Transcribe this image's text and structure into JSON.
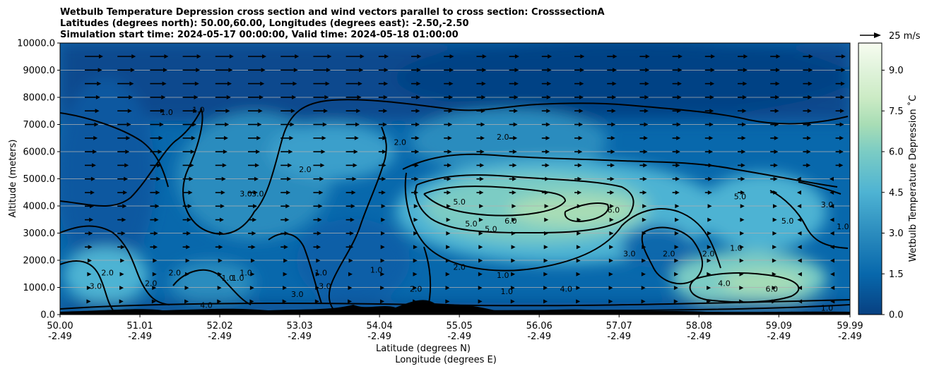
{
  "chart_data": {
    "type": "heatmap",
    "title_lines": [
      "Wetbulb Temperature Depression cross section and wind vectors parallel to cross section: CrosssectionA",
      "Latitudes (degrees north): 50.00,60.00, Longitudes (degrees east): -2.50,-2.50",
      "Simulation start time: 2024-05-17 00:00:00, Valid time: 2024-05-18 01:00:00"
    ],
    "ylabel": "Altitude (meters)",
    "xlabel_lines": [
      "Latitude (degrees N)",
      "Longitude (degrees E)"
    ],
    "colorbar_label": "Wetbulb Temperature Depression ˚C",
    "colormap": "GnBu",
    "x_ticks": [
      {
        "lat": "50.00",
        "lon": "-2.49"
      },
      {
        "lat": "51.01",
        "lon": "-2.49"
      },
      {
        "lat": "52.02",
        "lon": "-2.49"
      },
      {
        "lat": "53.03",
        "lon": "-2.49"
      },
      {
        "lat": "54.04",
        "lon": "-2.49"
      },
      {
        "lat": "55.05",
        "lon": "-2.49"
      },
      {
        "lat": "56.06",
        "lon": "-2.49"
      },
      {
        "lat": "57.07",
        "lon": "-2.49"
      },
      {
        "lat": "58.08",
        "lon": "-2.49"
      },
      {
        "lat": "59.09",
        "lon": "-2.49"
      },
      {
        "lat": "59.99",
        "lon": "-2.49"
      }
    ],
    "xlim": [
      50.0,
      59.99
    ],
    "y_ticks": [
      "0.0",
      "1000.0",
      "2000.0",
      "3000.0",
      "4000.0",
      "5000.0",
      "6000.0",
      "7000.0",
      "8000.0",
      "9000.0",
      "10000.0"
    ],
    "ylim": [
      0,
      10000
    ],
    "grid": "horizontal",
    "colorbar_ticks": [
      "0.0",
      "1.5",
      "3.0",
      "4.5",
      "6.0",
      "7.5",
      "9.0"
    ],
    "colorbar_range": [
      0,
      10
    ],
    "quiver_key": "25 m/s",
    "contour_levels": [
      1.0,
      2.0,
      3.0,
      4.0,
      5.0,
      6.0
    ],
    "contour_labels": [
      {
        "text": "1.0",
        "lat": 51.35,
        "alt": 7400
      },
      {
        "text": "1.0",
        "lat": 51.75,
        "alt": 7500
      },
      {
        "text": "2.0",
        "lat": 54.3,
        "alt": 6300
      },
      {
        "text": "2.0",
        "lat": 55.6,
        "alt": 6500
      },
      {
        "text": "2.0",
        "lat": 53.1,
        "alt": 5300
      },
      {
        "text": "3.0",
        "lat": 52.35,
        "alt": 4400
      },
      {
        "text": "3.0",
        "lat": 52.5,
        "alt": 4400
      },
      {
        "text": "5.0",
        "lat": 55.05,
        "alt": 4100
      },
      {
        "text": "5.0",
        "lat": 55.2,
        "alt": 3300
      },
      {
        "text": "5.0",
        "lat": 55.45,
        "alt": 3100
      },
      {
        "text": "6.0",
        "lat": 55.7,
        "alt": 3400
      },
      {
        "text": "6.0",
        "lat": 57.0,
        "alt": 3800
      },
      {
        "text": "5.0",
        "lat": 58.6,
        "alt": 4300
      },
      {
        "text": "5.0",
        "lat": 59.2,
        "alt": 3400
      },
      {
        "text": "3.0",
        "lat": 59.7,
        "alt": 4000
      },
      {
        "text": "3.0",
        "lat": 57.2,
        "alt": 2200
      },
      {
        "text": "2.0",
        "lat": 57.7,
        "alt": 2200
      },
      {
        "text": "2.0",
        "lat": 58.2,
        "alt": 2200
      },
      {
        "text": "1.0",
        "lat": 58.55,
        "alt": 2400
      },
      {
        "text": "4.0",
        "lat": 58.4,
        "alt": 1100
      },
      {
        "text": "6.0",
        "lat": 59.0,
        "alt": 900
      },
      {
        "text": "4.0",
        "lat": 56.4,
        "alt": 900
      },
      {
        "text": "2.0",
        "lat": 55.05,
        "alt": 1700
      },
      {
        "text": "1.0",
        "lat": 55.6,
        "alt": 1400
      },
      {
        "text": "1.0",
        "lat": 54.0,
        "alt": 1600
      },
      {
        "text": "1.0",
        "lat": 53.3,
        "alt": 1500
      },
      {
        "text": "3.0",
        "lat": 53.35,
        "alt": 1000
      },
      {
        "text": "3.0",
        "lat": 53.0,
        "alt": 700
      },
      {
        "text": "1.0",
        "lat": 52.35,
        "alt": 1500
      },
      {
        "text": "1.0",
        "lat": 52.12,
        "alt": 1300
      },
      {
        "text": "1.0",
        "lat": 52.25,
        "alt": 1300
      },
      {
        "text": "2.0",
        "lat": 51.45,
        "alt": 1500
      },
      {
        "text": "2.0",
        "lat": 51.15,
        "alt": 1100
      },
      {
        "text": "2.0",
        "lat": 50.6,
        "alt": 1500
      },
      {
        "text": "3.0",
        "lat": 50.45,
        "alt": 1000
      },
      {
        "text": "4.0",
        "lat": 51.85,
        "alt": 300
      },
      {
        "text": "2.0",
        "lat": 54.5,
        "alt": 900
      },
      {
        "text": "1.0",
        "lat": 55.65,
        "alt": 800
      },
      {
        "text": "1.0",
        "lat": 59.7,
        "alt": 200
      },
      {
        "text": "1.0",
        "lat": 59.9,
        "alt": 3200
      }
    ]
  }
}
